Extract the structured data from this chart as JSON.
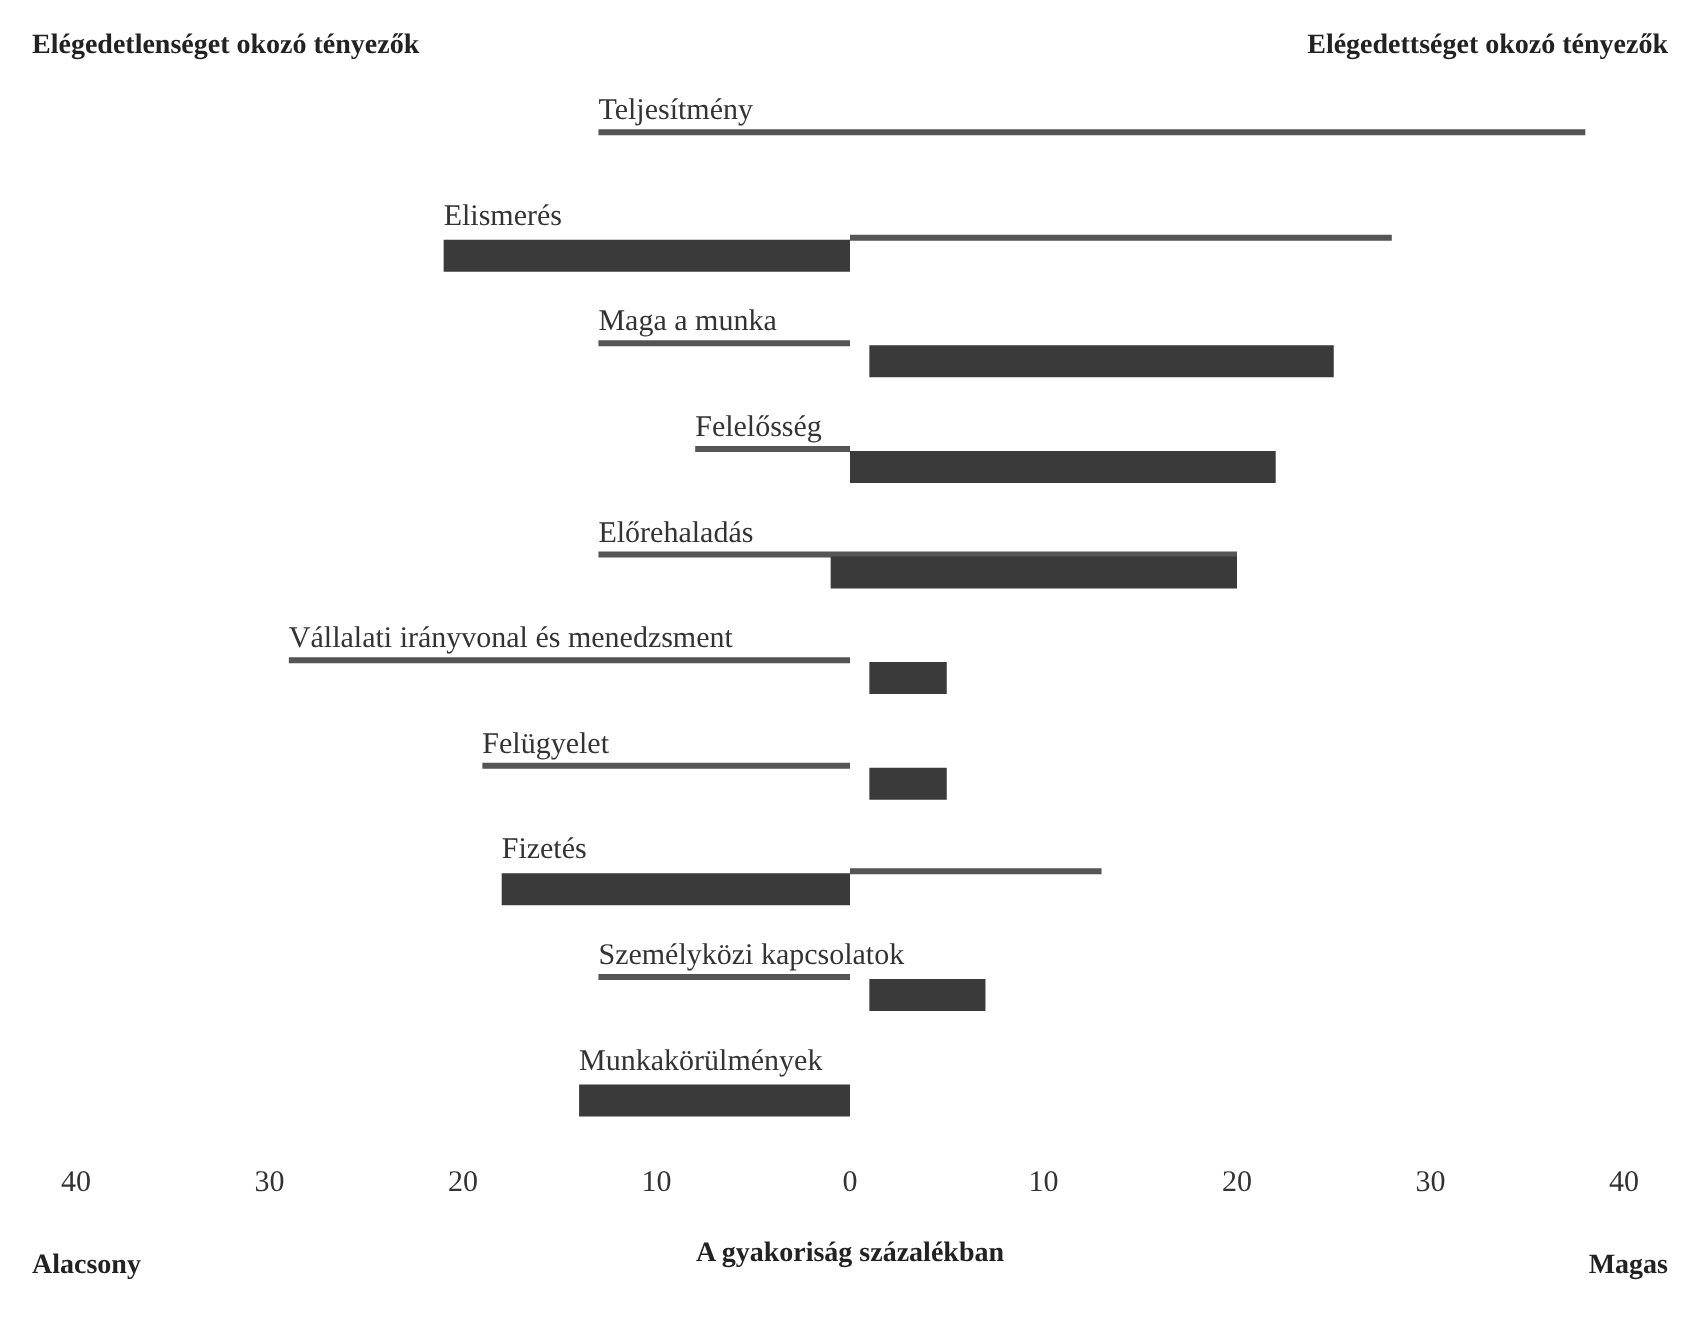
{
  "chart_data": {
    "type": "bar",
    "orientation": "horizontal",
    "categories": [
      "Teljesítmény",
      "Elismerés",
      "Maga a munka",
      "Felelősség",
      "Előrehaladás",
      "Vállalati irányvonal és menedzsment",
      "Felügyelet",
      "Fizetés",
      "Személyközi kapcsolatok",
      "Munkakörülmények"
    ],
    "series": [
      {
        "color": "#555555",
        "base": [
          -13,
          0,
          -13,
          -8,
          -13,
          -29,
          -19,
          0,
          -13,
          null
        ],
        "values": [
          51,
          28,
          13,
          8,
          33,
          29,
          19,
          13,
          13,
          null
        ]
      },
      {
        "color": "#3a3a3a",
        "base": [
          null,
          -21,
          1,
          0,
          -1,
          1,
          1,
          -18,
          1,
          -14
        ],
        "values": [
          null,
          21,
          24,
          22,
          21,
          4,
          4,
          18,
          6,
          14
        ]
      }
    ],
    "xlim": [
      -40,
      40
    ],
    "xticks": [
      {
        "value": -40,
        "label": "40"
      },
      {
        "value": -30,
        "label": "30"
      },
      {
        "value": -20,
        "label": "20"
      },
      {
        "value": -10,
        "label": "10"
      },
      0,
      {
        "value": 10,
        "label": "10"
      },
      {
        "value": 20,
        "label": "20"
      },
      {
        "value": 30,
        "label": "30"
      },
      {
        "value": 40,
        "label": "40"
      }
    ],
    "xlabel": "A gyakoriság százalékban",
    "annotations": [
      "Elégedetlenséget okozó tényezők",
      "Elégedettséget okozó tényezők",
      "Alacsony",
      "Magas"
    ],
    "grid": false
  }
}
